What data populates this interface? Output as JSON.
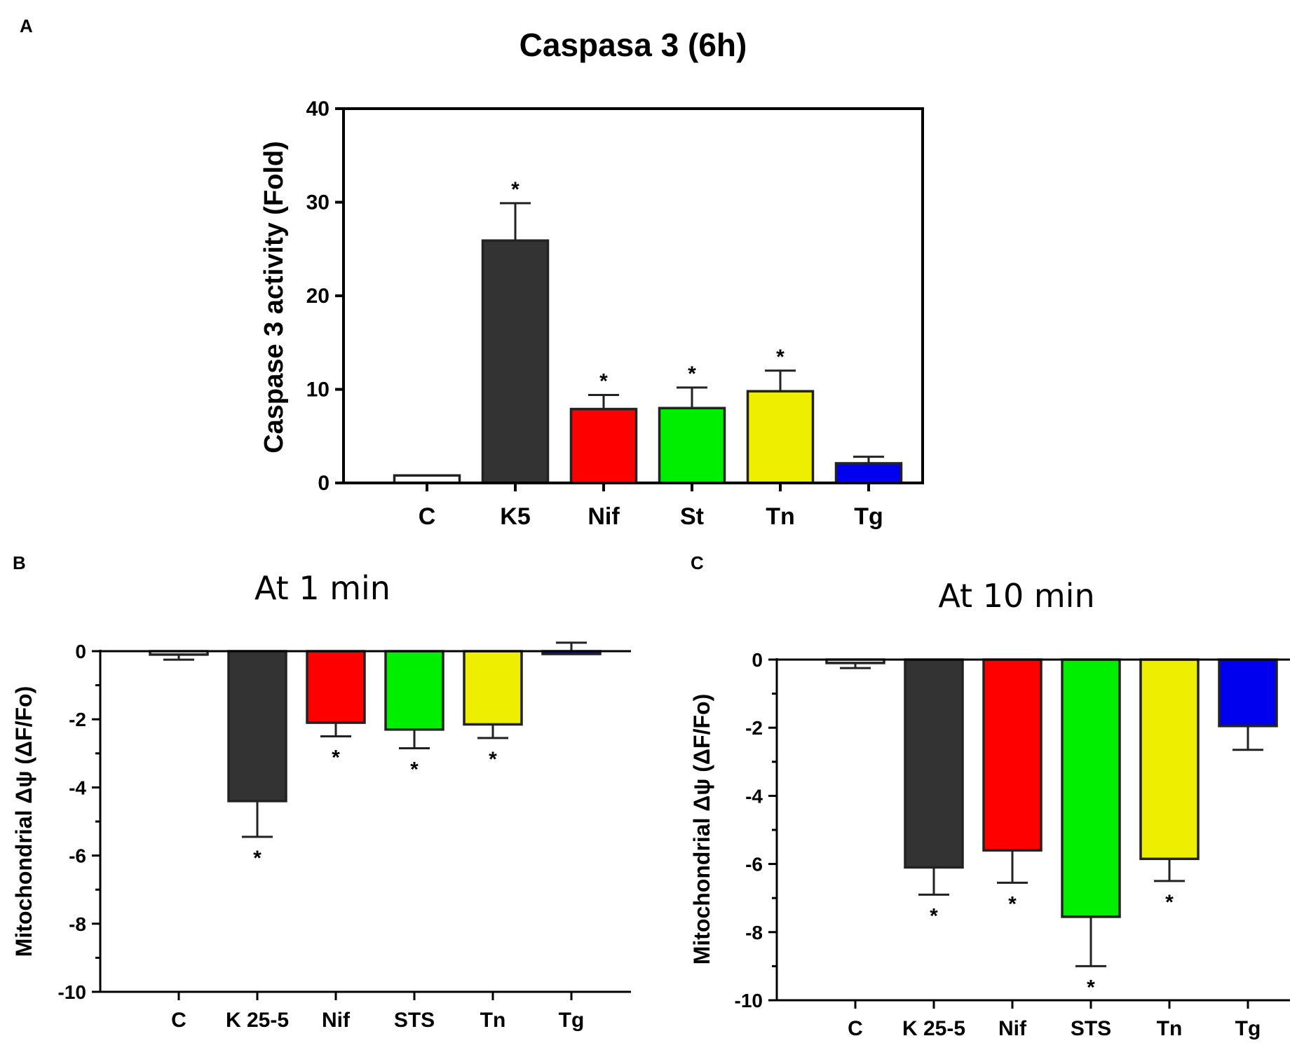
{
  "chart_data": [
    {
      "panel": "A",
      "type": "bar",
      "title": "Caspasa 3 (6h)",
      "xlabel": "",
      "ylabel": "Caspase 3 activity (Fold)",
      "ylim": [
        0,
        40
      ],
      "yticks": [
        0,
        10,
        20,
        30,
        40
      ],
      "categories": [
        "C",
        "K5",
        "Nif",
        "St",
        "Tn",
        "Tg"
      ],
      "values": [
        0.8,
        25.9,
        7.9,
        8.0,
        9.8,
        2.1
      ],
      "errors": [
        0.0,
        4.0,
        1.5,
        2.2,
        2.2,
        0.7
      ],
      "significant": [
        false,
        true,
        true,
        true,
        true,
        false
      ],
      "significance_marker": "*",
      "colors": [
        "#ffffff",
        "#333333",
        "#ff0000",
        "#00ee00",
        "#eeee00",
        "#0000ee"
      ]
    },
    {
      "panel": "B",
      "type": "bar",
      "title": "At 1 min",
      "xlabel": "",
      "ylabel": "Mitochondrial Δψ (ΔF/Fo)",
      "ylim": [
        -10,
        0
      ],
      "yticks": [
        0,
        -2,
        -4,
        -6,
        -8,
        -10
      ],
      "categories": [
        "C",
        "K 25-5",
        "Nif",
        "STS",
        "Tn",
        "Tg"
      ],
      "values": [
        -0.1,
        -4.4,
        -2.1,
        -2.3,
        -2.15,
        0.0
      ],
      "errors": [
        0.15,
        1.05,
        0.4,
        0.55,
        0.4,
        0.25
      ],
      "significant": [
        false,
        true,
        true,
        true,
        true,
        false
      ],
      "significance_marker": "*",
      "colors": [
        "#ffffff",
        "#333333",
        "#ff0000",
        "#00ee00",
        "#eeee00",
        "#0000ee"
      ]
    },
    {
      "panel": "C",
      "type": "bar",
      "title": "At 10 min",
      "xlabel": "",
      "ylabel": "Mitochondrial Δψ (ΔF/Fo)",
      "ylim": [
        -10,
        0
      ],
      "yticks": [
        0,
        -2,
        -4,
        -6,
        -8,
        -10
      ],
      "categories": [
        "C",
        "K 25-5",
        "Nif",
        "STS",
        "Tn",
        "Tg"
      ],
      "values": [
        -0.1,
        -6.1,
        -5.6,
        -7.55,
        -5.85,
        -1.95
      ],
      "errors": [
        0.15,
        0.8,
        0.95,
        1.45,
        0.65,
        0.7
      ],
      "significant": [
        false,
        true,
        true,
        true,
        true,
        false
      ],
      "significance_marker": "*",
      "colors": [
        "#ffffff",
        "#333333",
        "#ff0000",
        "#00ee00",
        "#eeee00",
        "#0000ee"
      ]
    }
  ]
}
